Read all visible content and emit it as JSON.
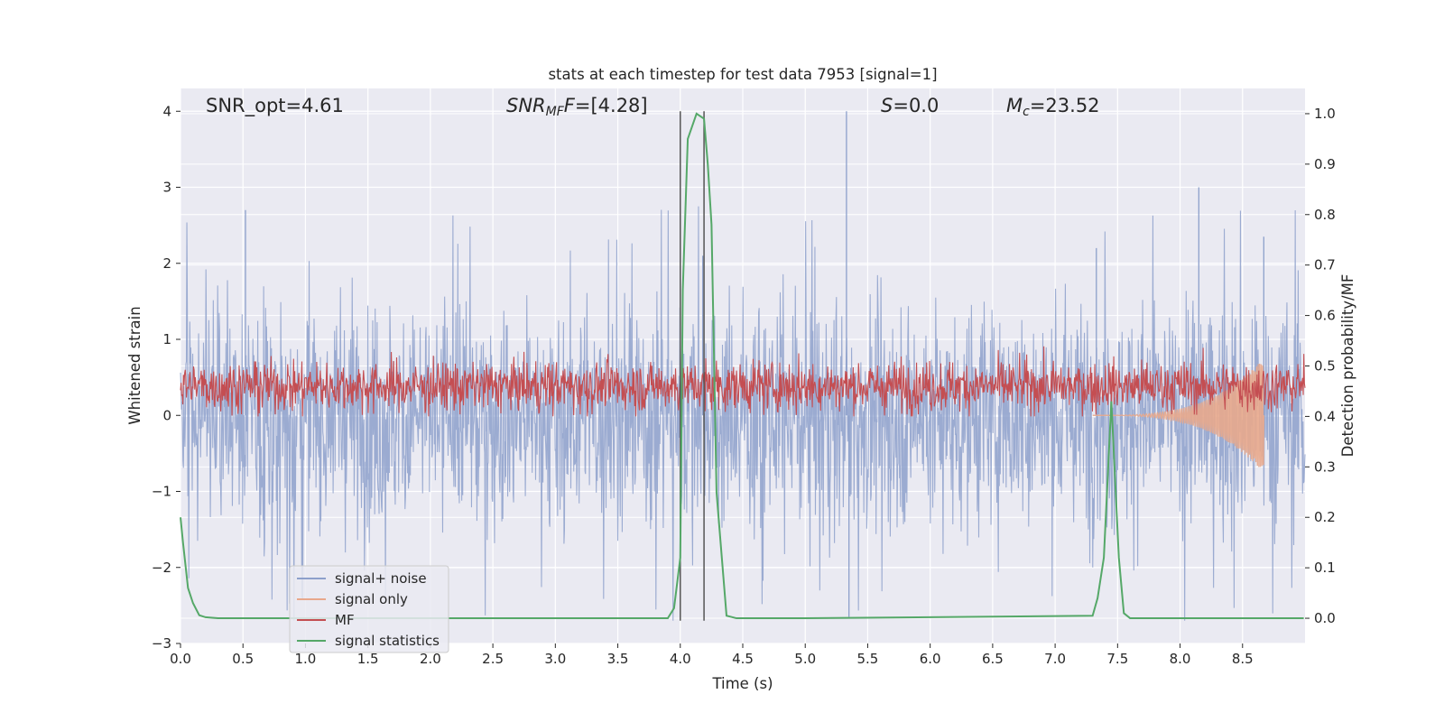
{
  "chart_data": {
    "type": "line",
    "title": "stats at each timestep for test data 7953 [signal=1]",
    "xlabel": "Time (s)",
    "ylabel_left": "Whitened strain",
    "ylabel_right": "Detection probability/MF",
    "xlim": [
      0.0,
      9.0
    ],
    "ylim_left": [
      -3.0,
      4.3
    ],
    "ylim_right": [
      -0.05,
      1.05
    ],
    "x_ticks": [
      "0.0",
      "0.5",
      "1.0",
      "1.5",
      "2.0",
      "2.5",
      "3.0",
      "3.5",
      "4.0",
      "4.5",
      "5.0",
      "5.5",
      "6.0",
      "6.5",
      "7.0",
      "7.5",
      "8.0",
      "8.5"
    ],
    "y_ticks_left": [
      "4",
      "3",
      "2",
      "1",
      "0",
      "−1",
      "−2",
      "−3"
    ],
    "y_ticks_right": [
      "1.0",
      "0.9",
      "0.8",
      "0.7",
      "0.6",
      "0.5",
      "0.4",
      "0.3",
      "0.2",
      "0.1",
      "0.0"
    ],
    "grid": true,
    "legend_position": "lower-left",
    "annotations": {
      "snr_opt": "SNR_opt=4.61",
      "snr_mf_main": "SNR",
      "snr_mf_sub": "MF",
      "snr_mf_rest": "=[4.28]",
      "s_main": "S",
      "s_rest": "=0.0",
      "mc_main": "M",
      "mc_sub": "c",
      "mc_rest": "=23.52"
    },
    "vlines_x": [
      4.0,
      4.19
    ],
    "series": [
      {
        "name": "signal+ noise",
        "axis": "left",
        "color": "#8da0cb",
        "description_values": {
          "envelope_typical": [
            -1.3,
            1.3
          ],
          "max": 4.0,
          "min": -2.7,
          "mean": 0.0
        }
      },
      {
        "name": "signal only",
        "axis": "left",
        "color": "#e8a88c",
        "chirp": {
          "start_x": 7.3,
          "end_x": 8.67,
          "peak_amplitude": 0.75
        }
      },
      {
        "name": "MF",
        "axis": "right",
        "color": "#c44e52",
        "description_values": {
          "range": [
            0.4,
            0.55
          ],
          "peak": 0.57
        }
      },
      {
        "name": "signal statistics",
        "axis": "right",
        "color": "#55a868",
        "x": [
          0.0,
          0.02,
          0.06,
          0.1,
          0.15,
          0.2,
          0.3,
          0.5,
          3.9,
          3.95,
          4.0,
          4.02,
          4.06,
          4.13,
          4.19,
          4.22,
          4.25,
          4.29,
          4.37,
          4.45,
          5.0,
          7.3,
          7.34,
          7.39,
          7.45,
          7.51,
          7.55,
          7.6,
          7.7,
          8.99
        ],
        "y": [
          0.2,
          0.15,
          0.06,
          0.03,
          0.006,
          0.002,
          0.0,
          0.0,
          0.0,
          0.02,
          0.12,
          0.65,
          0.95,
          1.0,
          0.99,
          0.9,
          0.78,
          0.25,
          0.005,
          0.0,
          0.0,
          0.005,
          0.04,
          0.12,
          0.43,
          0.12,
          0.01,
          0.0,
          0.0,
          0.0
        ]
      }
    ]
  },
  "colors": {
    "plot_background": "#eaeaf2",
    "grid": "#ffffff",
    "text": "#262626"
  }
}
